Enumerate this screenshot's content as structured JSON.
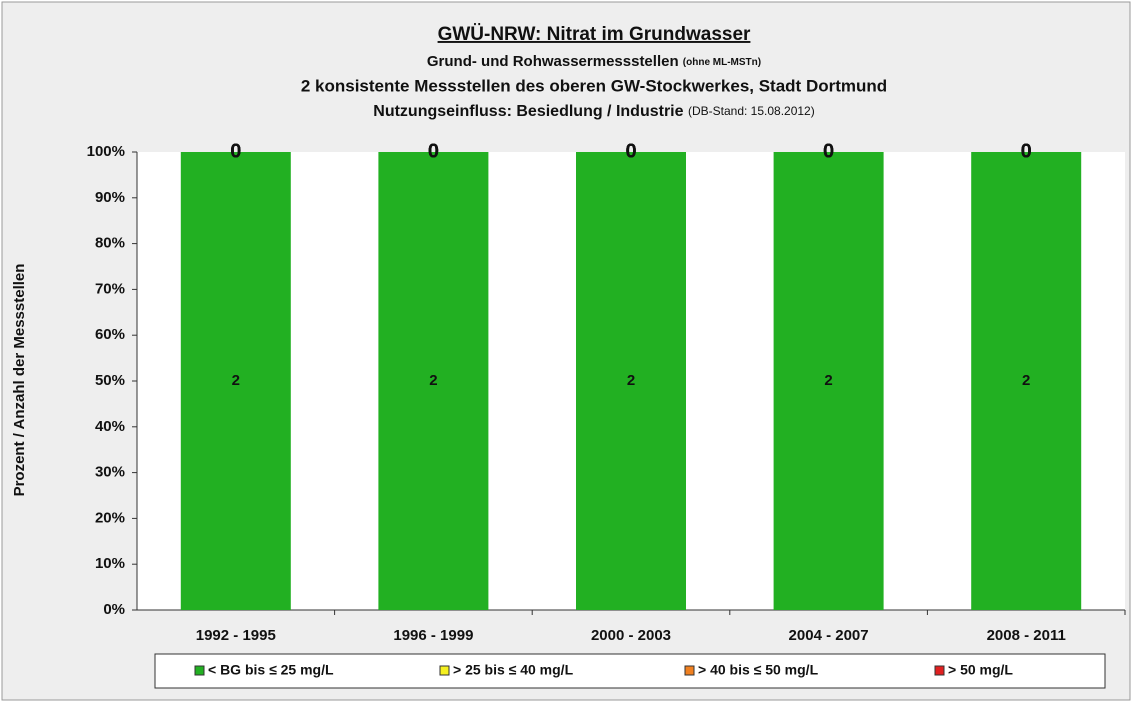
{
  "chart_data": {
    "type": "bar",
    "stacked": true,
    "title": "GWÜ-NRW: Nitrat im Grundwasser",
    "subtitle": [
      "Grund- und Rohwassermessstellen",
      "2 konsistente Messstellen des oberen GW-Stockwerkes, Stadt Dortmund",
      "Nutzungseinfluss: Besiedlung / Industrie"
    ],
    "subtitle_notes": [
      "(ohne ML-MSTn)",
      "(DB-Stand: 15.08.2012)"
    ],
    "ylabel": "Prozent / Anzahl der Messstellen",
    "categories": [
      "1992 - 1995",
      "1996 - 1999",
      "2000 - 2003",
      "2004 - 2007",
      "2008 - 2011"
    ],
    "series": [
      {
        "name": "< BG bis ≤ 25 mg/L",
        "color": "#22b022",
        "values": [
          100,
          100,
          100,
          100,
          100
        ],
        "counts": [
          2,
          2,
          2,
          2,
          2
        ]
      },
      {
        "name": "> 25 bis ≤ 40 mg/L",
        "color": "#f5f020",
        "values": [
          0,
          0,
          0,
          0,
          0
        ],
        "counts": [
          0,
          0,
          0,
          0,
          0
        ]
      },
      {
        "name": "> 40 bis ≤ 50 mg/L",
        "color": "#f08020",
        "values": [
          0,
          0,
          0,
          0,
          0
        ],
        "counts": [
          0,
          0,
          0,
          0,
          0
        ]
      },
      {
        "name": "> 50 mg/L",
        "color": "#e02020",
        "values": [
          0,
          0,
          0,
          0,
          0
        ],
        "counts": [
          0,
          0,
          0,
          0,
          0
        ]
      }
    ],
    "ylim": [
      0,
      100
    ],
    "yticks": [
      {
        "value": 0,
        "label": "0%"
      },
      {
        "value": 10,
        "label": "10%"
      },
      {
        "value": 20,
        "label": "20%"
      },
      {
        "value": 30,
        "label": "30%"
      },
      {
        "value": 40,
        "label": "40%"
      },
      {
        "value": 50,
        "label": "50%"
      },
      {
        "value": 60,
        "label": "60%"
      },
      {
        "value": 70,
        "label": "70%"
      },
      {
        "value": 80,
        "label": "80%"
      },
      {
        "value": 90,
        "label": "90%"
      },
      {
        "value": 100,
        "label": "100%"
      }
    ],
    "legend": "bottom"
  }
}
